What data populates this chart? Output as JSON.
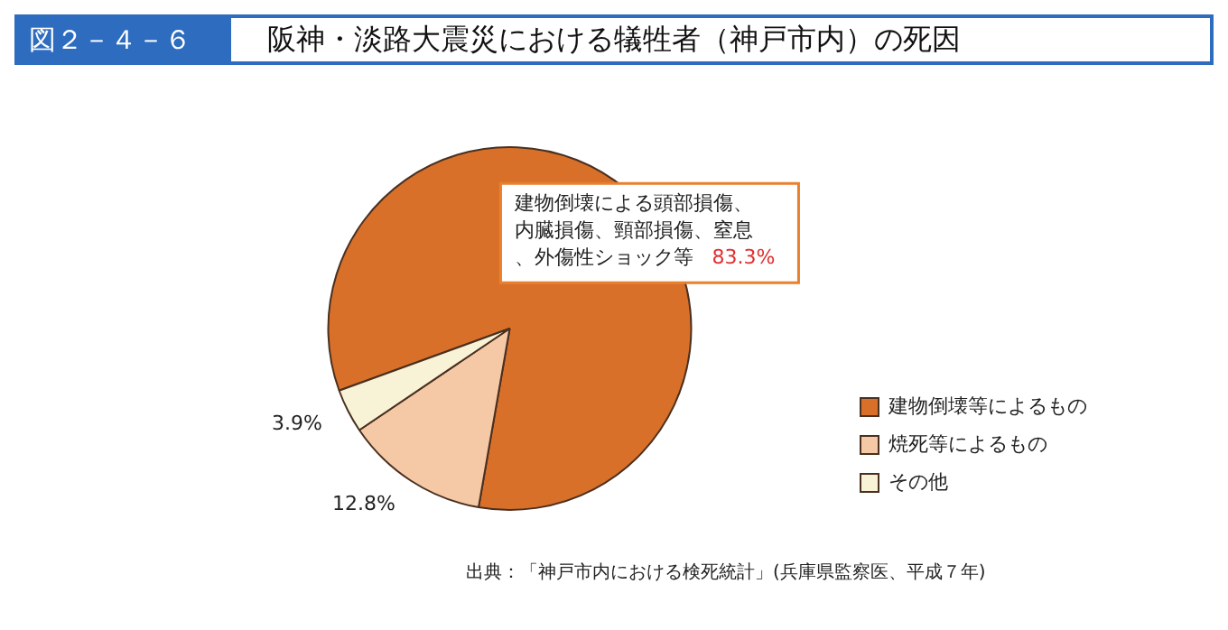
{
  "chart_data": {
    "type": "pie",
    "subtitle": "図２－４－６",
    "title": "阪神・淡路大震災における犠牲者（神戸市内）の死因",
    "categories": [
      "建物倒壊等によるもの",
      "焼死等によるもの",
      "その他"
    ],
    "values": [
      83.3,
      12.8,
      3.9
    ],
    "colors": [
      "#d8702a",
      "#f5c9a6",
      "#f8f3d6"
    ],
    "value_labels": [
      "83.3%",
      "12.8%",
      "3.9%"
    ],
    "legend": "bottom right",
    "annotations": [
      "建物倒壊による頭部損傷、内臓損傷、頸部損傷、窒息、外傷性ショック等",
      "出典：「神戸市内における検死統計」(兵庫県監察医、平成７年)"
    ]
  }
}
